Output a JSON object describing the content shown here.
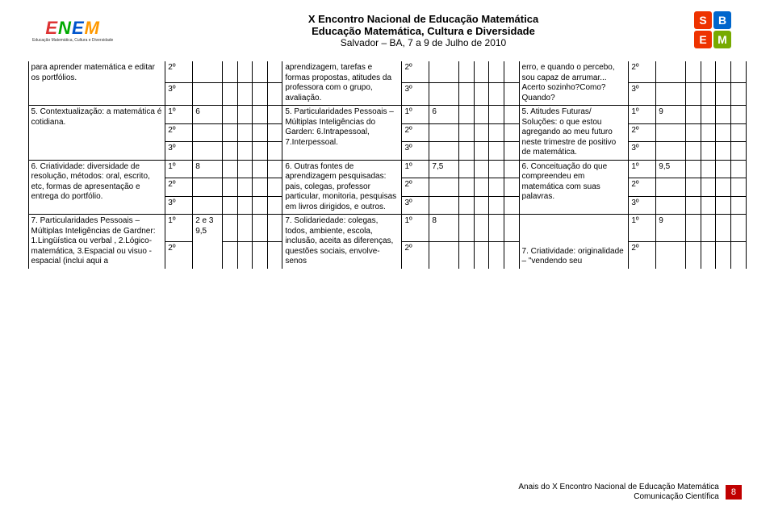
{
  "header": {
    "line1": "X Encontro Nacional de Educação Matemática",
    "line2": "Educação Matemática, Cultura e Diversidade",
    "line3": "Salvador – BA, 7 a 9 de Julho de 2010",
    "enem_sub1": "Educação Matemática, Cultura e Diversidade",
    "sbem_s": "S",
    "sbem_b": "B",
    "sbem_e": "E",
    "sbem_m": "M",
    "enem_letters": [
      "E",
      "N",
      "E",
      "M"
    ]
  },
  "blockA": {
    "row1": {
      "c1_desc": "para aprender matemática e editar os portfólios.",
      "c1_o1": "2º",
      "c1_o2": "3º",
      "c2_desc": "aprendizagem, tarefas e formas propostas, atitudes da professora com o grupo, avaliação.",
      "c2_o1": "2º",
      "c2_o2": "3º",
      "c3_desc": "erro, e quando o percebo, sou capaz de arrumar... Acerto sozinho?Como? Quando?",
      "c3_o1": "2º",
      "c3_o2": "3º"
    },
    "row2": {
      "c1_desc": "5. Contextualização: a matemática é cotidiana.",
      "c1_o1": "1º",
      "c1_n1": "6",
      "c1_o2": "2º",
      "c1_o3": "3º",
      "c2_desc": "5. Particularidades Pessoais – Múltiplas Inteligências do Garden: 6.Intrapessoal, 7.Interpessoal.",
      "c2_o1": "1º",
      "c2_n1": "6",
      "c2_o2": "2º",
      "c2_o3": "3º",
      "c3_desc": "5. Atitudes Futuras/ Soluções: o que estou agregando ao meu futuro neste trimestre de positivo de matemática.",
      "c3_o1": "1º",
      "c3_n1": "9",
      "c3_o2": "2º",
      "c3_o3": "3º"
    },
    "row3": {
      "c1_desc": "6. Criatividade: diversidade de resolução, métodos: oral, escrito, etc, formas de apresentação e entrega do portfólio.",
      "c1_o1": "1º",
      "c1_n1": "8",
      "c1_o2": "2º",
      "c1_o3": "3º",
      "c2_desc": "6. Outras fontes de aprendizagem pesquisadas: pais, colegas, professor particular, monitoria, pesquisas em livros dirigidos, e outros.",
      "c2_o1": "1º",
      "c2_n1": "7,5",
      "c2_o2": "2º",
      "c2_o3": "3º",
      "c3_desc": "6. Conceituação do que compreendeu em matemática com suas palavras.",
      "c3_o1": "1º",
      "c3_n1": "9,5",
      "c3_o2": "2º",
      "c3_o3": "3º"
    },
    "row4": {
      "c1_desc": "7. Particularidades Pessoais – Múltiplas Inteligências de Gardner: 1.Lingüística ou verbal , 2.Lógico-matemática, 3.Espacial ou visuo - espacial (inclui aqui a",
      "c1_o1": "1º",
      "c1_n1": "2 e 3 9,5",
      "c1_o2": "2º",
      "c2_desc": "7. Solidariedade: colegas, todos, ambiente, escola, inclusão, aceita as diferenças, questões sociais, envolve-senos",
      "c2_o1": "1º",
      "c2_n1": "8",
      "c2_o2": "2º",
      "c3_desc": "7. Criatividade: originalidade – \"vendendo seu",
      "c3_o1": "1º",
      "c3_n1": "9",
      "c3_o2": "2º"
    }
  },
  "footer": {
    "line1": "Anais do X Encontro Nacional de Educação Matemática",
    "line2": "Comunicação Científica",
    "page": "8"
  },
  "colors": {
    "page_red": "#c00000"
  }
}
